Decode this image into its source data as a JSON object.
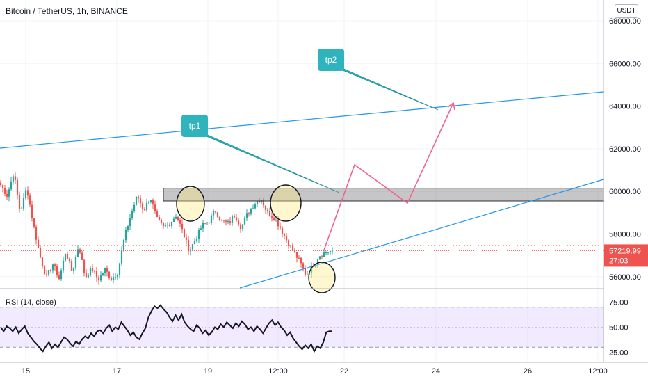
{
  "header": {
    "title": "Bitcoin / TetherUS, 1h, BINANCE",
    "currency": "USDT"
  },
  "rsi": {
    "label": "RSI (14, close)"
  },
  "chart_data": [
    {
      "type": "candlestick",
      "title": "Bitcoin / TetherUS, 1h, BINANCE",
      "ylim": [
        55500,
        68400
      ],
      "y_ticks": [
        56000,
        58000,
        60000,
        62000,
        64000,
        66000,
        68000
      ],
      "y_tick_labels": [
        "56000.00",
        "58000.00",
        "60000.00",
        "62000.00",
        "64000.00",
        "66000.00",
        "68000.00"
      ],
      "x_tick_labels": [
        "15",
        "17",
        "19",
        "12:00",
        "22",
        "24",
        "26",
        "12:00"
      ],
      "last_price": {
        "value": 57219.99,
        "label": "57219.99",
        "countdown": "27:03"
      },
      "resistance_zone": [
        59550,
        60150
      ],
      "targets": [
        {
          "label": "tp1",
          "price": 59950
        },
        {
          "label": "tp2",
          "price": 63800
        }
      ],
      "projected_path": [
        57250,
        61250,
        59450,
        64150
      ],
      "price_anchors": [
        60300,
        59800,
        60900,
        59000,
        60200,
        58500,
        57000,
        55950,
        56600,
        55900,
        57200,
        56200,
        57500,
        55950,
        56400,
        55850,
        56350,
        55900,
        56200,
        57800,
        58900,
        59800,
        59100,
        59750,
        58700,
        58300,
        58500,
        58900,
        58100,
        57200,
        57800,
        58400,
        58600,
        59100,
        58600,
        58500,
        58900,
        58300,
        59000,
        59400,
        59700,
        59000,
        58800,
        58300,
        57700,
        57200,
        56700,
        56050,
        56500,
        57000,
        57150,
        57220
      ]
    },
    {
      "type": "line",
      "title": "RSI (14, close)",
      "ylim": [
        20,
        78
      ],
      "y_ticks": [
        25,
        50,
        75
      ],
      "y_tick_labels": [
        "25.00",
        "50.00",
        "75.00"
      ],
      "band": [
        30,
        70
      ],
      "series": [
        {
          "values": [
            50,
            46,
            51,
            49,
            46,
            50,
            44,
            48,
            51,
            44,
            40,
            36,
            33,
            29,
            26,
            31,
            35,
            29,
            33,
            30,
            35,
            40,
            38,
            34,
            31,
            36,
            33,
            38,
            41,
            39,
            44,
            41,
            46,
            47,
            44,
            49,
            52,
            46,
            50,
            48,
            55,
            51,
            47,
            42,
            45,
            40,
            38,
            44,
            49,
            60,
            66,
            71,
            69,
            72,
            68,
            65,
            60,
            56,
            62,
            57,
            63,
            55,
            51,
            48,
            46,
            52,
            49,
            44,
            47,
            42,
            45,
            50,
            48,
            53,
            50,
            55,
            52,
            49,
            54,
            51,
            56,
            53,
            48,
            50,
            46,
            51,
            48,
            44,
            49,
            54,
            57,
            52,
            55,
            50,
            47,
            42,
            45,
            39,
            35,
            31,
            28,
            32,
            29,
            33,
            26,
            31,
            29,
            35,
            45,
            46,
            46
          ]
        }
      ]
    }
  ]
}
